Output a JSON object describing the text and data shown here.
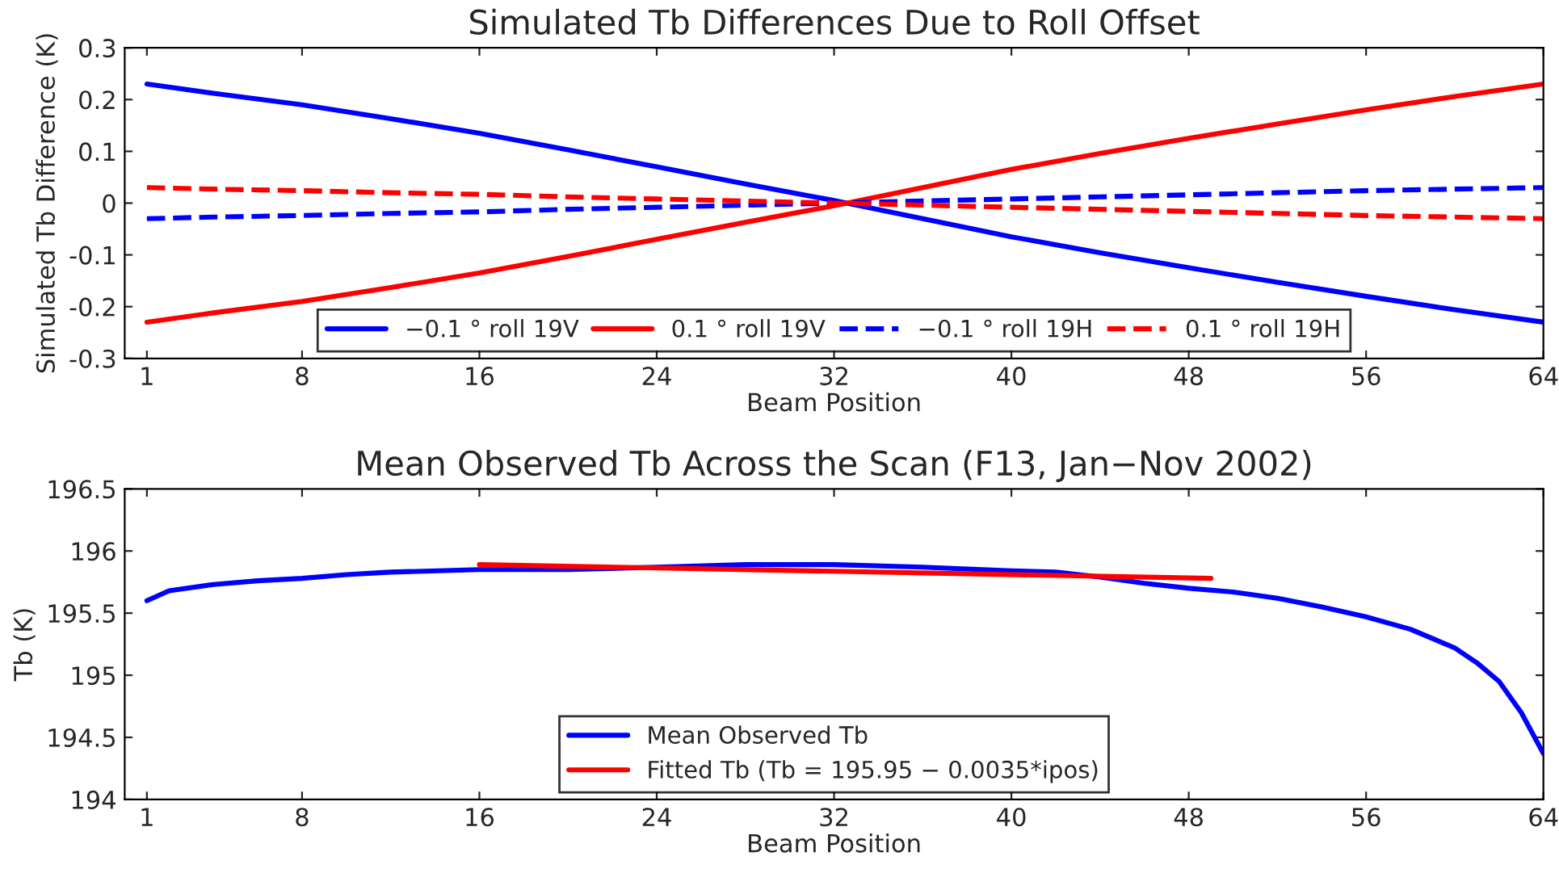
{
  "chart_data": [
    {
      "type": "line",
      "title": "Simulated Tb Differences Due to Roll Offset",
      "xlabel": "Beam Position",
      "ylabel": "Simulated Tb Difference (K)",
      "x": [
        1,
        4,
        8,
        12,
        16,
        20,
        24,
        28,
        32,
        36,
        40,
        44,
        48,
        52,
        56,
        60,
        64
      ],
      "series": [
        {
          "name": "−0.1 ° roll 19V",
          "color": "#0000ff",
          "line_style": "solid",
          "values": [
            0.23,
            0.212,
            0.19,
            0.163,
            0.135,
            0.103,
            0.07,
            0.037,
            0.005,
            -0.03,
            -0.065,
            -0.096,
            -0.125,
            -0.153,
            -0.18,
            -0.206,
            -0.23
          ]
        },
        {
          "name": "0.1 ° roll 19V",
          "color": "#ff0000",
          "line_style": "solid",
          "values": [
            -0.23,
            -0.212,
            -0.19,
            -0.163,
            -0.135,
            -0.103,
            -0.07,
            -0.037,
            -0.005,
            0.03,
            0.065,
            0.096,
            0.125,
            0.153,
            0.18,
            0.206,
            0.23
          ]
        },
        {
          "name": "−0.1 ° roll 19H",
          "color": "#0000ff",
          "line_style": "dashed",
          "values": [
            -0.03,
            -0.027,
            -0.024,
            -0.02,
            -0.017,
            -0.012,
            -0.008,
            -0.004,
            0.0,
            0.004,
            0.008,
            0.012,
            0.016,
            0.02,
            0.024,
            0.027,
            0.03
          ]
        },
        {
          "name": "0.1 ° roll 19H",
          "color": "#ff0000",
          "line_style": "dashed",
          "values": [
            0.03,
            0.027,
            0.024,
            0.02,
            0.017,
            0.012,
            0.008,
            0.004,
            0.0,
            -0.004,
            -0.008,
            -0.012,
            -0.016,
            -0.02,
            -0.024,
            -0.027,
            -0.03
          ]
        }
      ],
      "xlim": [
        0,
        64
      ],
      "xticks": [
        1,
        8,
        16,
        24,
        32,
        40,
        48,
        56,
        64
      ],
      "ylim": [
        -0.3,
        0.3
      ],
      "yticks": [
        -0.3,
        -0.2,
        -0.1,
        {
          "value": 0,
          "label": "0"
        },
        0.1,
        0.2,
        0.3
      ],
      "grid": false,
      "legend": "bottom"
    },
    {
      "type": "line",
      "title": "Mean Observed Tb Across the Scan (F13, Jan−Nov 2002)",
      "xlabel": "Beam Position",
      "ylabel": "Tb (K)",
      "series": [
        {
          "name": "Mean Observed Tb",
          "color": "#0000ff",
          "line_style": "solid",
          "x": [
            1,
            2,
            4,
            6,
            8,
            10,
            12,
            16,
            20,
            24,
            28,
            32,
            36,
            40,
            42,
            44,
            46,
            48,
            50,
            52,
            54,
            56,
            58,
            60,
            61,
            62,
            63,
            64
          ],
          "values": [
            195.6,
            195.68,
            195.73,
            195.76,
            195.78,
            195.81,
            195.83,
            195.85,
            195.85,
            195.87,
            195.89,
            195.89,
            195.87,
            195.84,
            195.83,
            195.79,
            195.74,
            195.7,
            195.67,
            195.62,
            195.55,
            195.47,
            195.37,
            195.22,
            195.1,
            194.95,
            194.7,
            194.37
          ]
        },
        {
          "name": "Fitted Tb (Tb = 195.95 − 0.0035*ipos)",
          "color": "#ff0000",
          "line_style": "solid",
          "x": [
            16,
            49
          ],
          "values": [
            195.89,
            195.78
          ]
        }
      ],
      "xlim": [
        0,
        64
      ],
      "xticks": [
        1,
        8,
        16,
        24,
        32,
        40,
        48,
        56,
        64
      ],
      "ylim": [
        194,
        196.5
      ],
      "yticks": [
        194,
        194.5,
        195,
        195.5,
        196,
        196.5
      ],
      "grid": false,
      "legend": "bottom"
    }
  ]
}
